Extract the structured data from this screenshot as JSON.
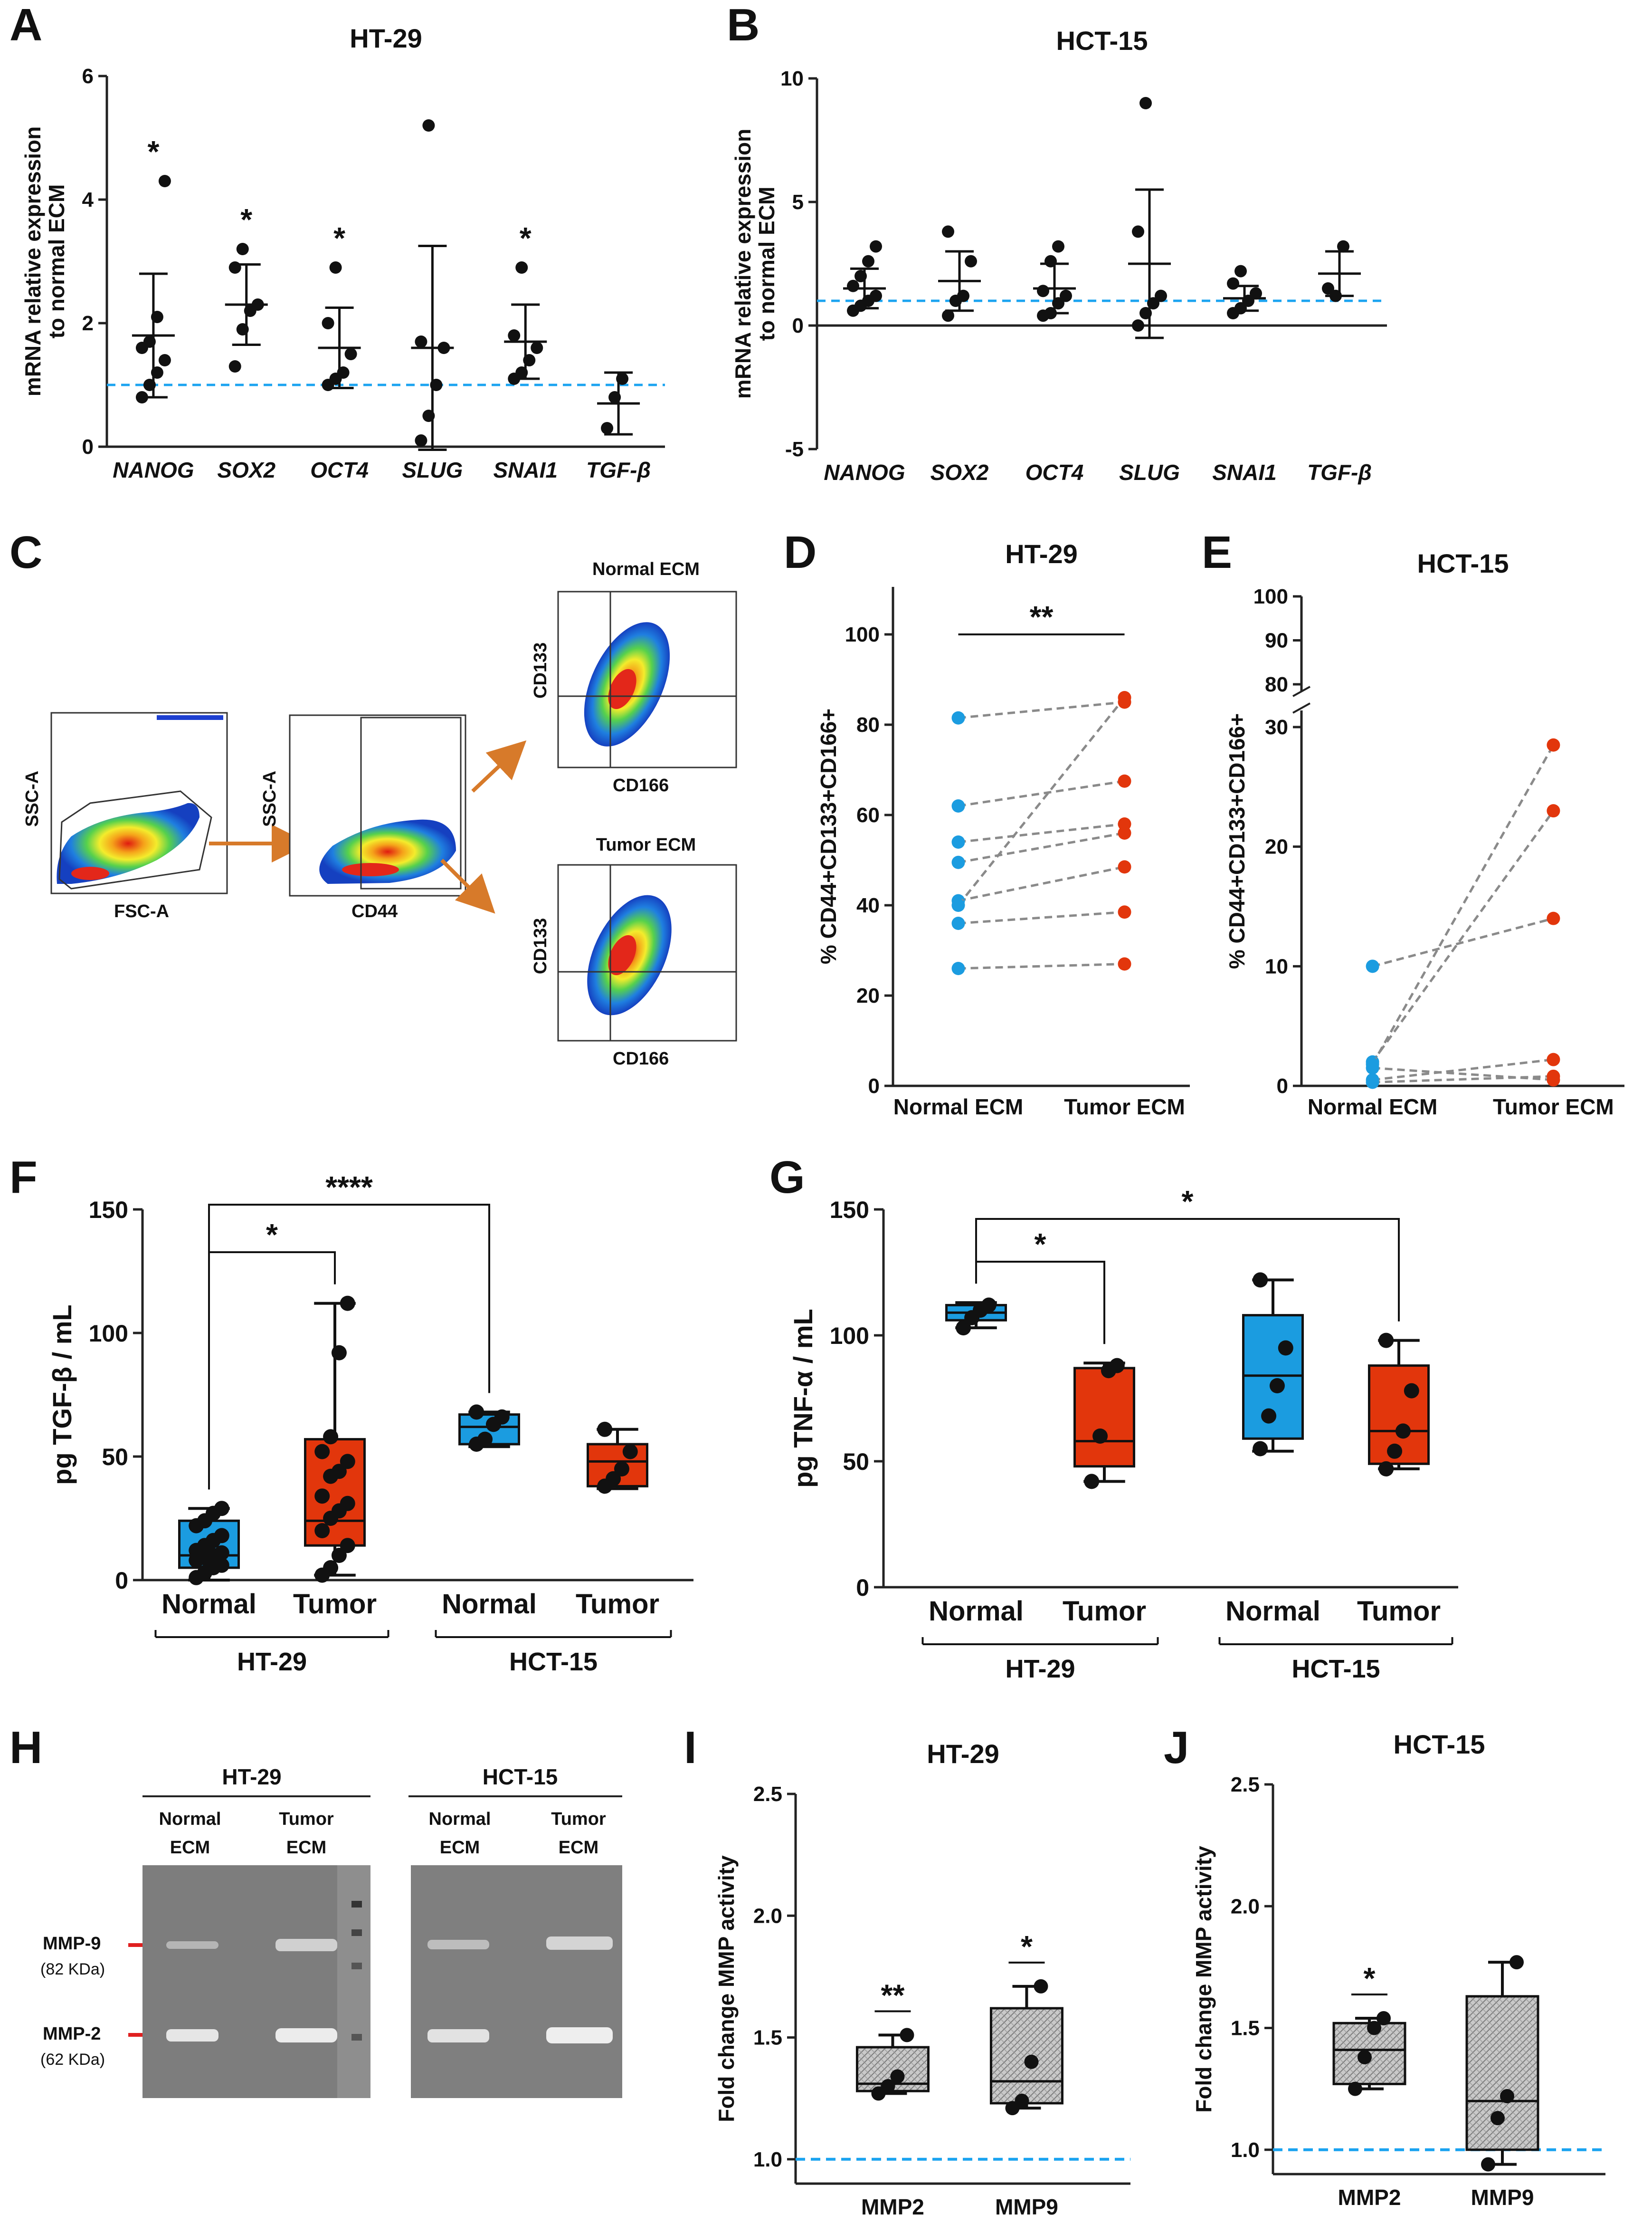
{
  "colors": {
    "normal": "#1b9ce0",
    "tumor": "#e2360c",
    "refline": "#1aa3f0",
    "connector": "#8a8a8a",
    "arrow": "#d77a2a",
    "marker": "#e02020"
  },
  "panels": {
    "A": "A",
    "B": "B",
    "C": "C",
    "D": "D",
    "E": "E",
    "F": "F",
    "G": "G",
    "H": "H",
    "I": "I",
    "J": "J"
  },
  "axis_titles": {
    "mrna": [
      "mRNA relative expression",
      "to normal ECM"
    ],
    "cd": "% CD44+CD133+CD166+",
    "tgf": "pg TGF-β / mL",
    "tnf": "pg TNF-α / mL",
    "mmp": "Fold change MMP activity"
  },
  "chart_data": [
    {
      "id": "A",
      "type": "scatter",
      "title": "HT-29",
      "ylabel": "mRNA relative expression to normal ECM",
      "ylim": [
        0,
        6
      ],
      "yticks": [
        0,
        2,
        4,
        6
      ],
      "categories": [
        "NANOG",
        "SOX2",
        "OCT4",
        "SLUG",
        "SNAI1",
        "TGF-β"
      ],
      "reference_line": 1,
      "points": [
        [
          0.8,
          1.0,
          1.2,
          1.4,
          1.6,
          1.7,
          2.1,
          4.3
        ],
        [
          1.3,
          1.9,
          2.2,
          2.3,
          2.9,
          3.2
        ],
        [
          1.0,
          1.1,
          1.2,
          1.5,
          2.0,
          2.9
        ],
        [
          0.1,
          0.5,
          1.0,
          1.6,
          1.7,
          5.2
        ],
        [
          1.1,
          1.2,
          1.4,
          1.6,
          1.8,
          2.9
        ],
        [
          0.3,
          0.8,
          1.1
        ]
      ],
      "mean": [
        1.8,
        2.3,
        1.6,
        1.6,
        1.7,
        0.7
      ],
      "sd": [
        1.0,
        0.65,
        0.65,
        1.65,
        0.6,
        0.5
      ],
      "significance": [
        "*",
        "*",
        "*",
        "",
        "*",
        ""
      ]
    },
    {
      "id": "B",
      "type": "scatter",
      "title": "HCT-15",
      "ylabel": "mRNA relative expression to normal ECM",
      "ylim": [
        -5,
        10
      ],
      "yticks": [
        -5,
        0,
        5,
        10
      ],
      "categories": [
        "NANOG",
        "SOX2",
        "OCT4",
        "SLUG",
        "SNAI1",
        "TGF-β"
      ],
      "reference_line": 1,
      "points": [
        [
          0.6,
          0.8,
          1.0,
          1.2,
          1.6,
          2.0,
          2.6,
          3.2
        ],
        [
          0.4,
          1.0,
          1.2,
          2.6,
          3.8
        ],
        [
          0.4,
          0.5,
          0.9,
          1.2,
          1.4,
          2.6,
          3.2
        ],
        [
          0.0,
          0.5,
          0.9,
          1.2,
          3.8,
          9.0
        ],
        [
          0.5,
          0.7,
          1.0,
          1.3,
          1.7,
          2.2
        ],
        [
          1.5,
          1.2,
          3.2
        ]
      ],
      "mean": [
        1.5,
        1.8,
        1.5,
        2.5,
        1.1,
        2.1
      ],
      "sd": [
        0.8,
        1.2,
        1.0,
        3.0,
        0.5,
        0.9
      ],
      "significance": [
        "",
        "",
        "",
        "",
        "",
        ""
      ]
    },
    {
      "id": "D",
      "type": "line",
      "title": "HT-29",
      "ylabel": "% CD44+CD133+CD166+",
      "categories": [
        "Normal ECM",
        "Tumor ECM"
      ],
      "ylim": [
        0,
        100
      ],
      "yticks": [
        0,
        20,
        40,
        60,
        80,
        100
      ],
      "pairs": [
        [
          81.5,
          85.0
        ],
        [
          62,
          67.5
        ],
        [
          54,
          58
        ],
        [
          49.5,
          56
        ],
        [
          41,
          48.5
        ],
        [
          40,
          86
        ],
        [
          36,
          38.5
        ],
        [
          26,
          27
        ]
      ],
      "significance": "**"
    },
    {
      "id": "E",
      "type": "line",
      "title": "HCT-15",
      "ylabel": "% CD44+CD133+CD166+",
      "categories": [
        "Normal ECM",
        "Tumor ECM"
      ],
      "ylim": [
        0,
        100
      ],
      "ytick_labels": [
        "0",
        "10",
        "20",
        "30",
        "80",
        "90",
        "100"
      ],
      "pairs": [
        [
          10,
          14
        ],
        [
          2,
          23
        ],
        [
          1.8,
          28.5
        ],
        [
          1.5,
          0.5
        ],
        [
          0.5,
          2.2
        ],
        [
          0.3,
          0.8
        ]
      ]
    },
    {
      "id": "F",
      "type": "box",
      "ylabel": "pg TGF-β / mL",
      "ylim": [
        0,
        150
      ],
      "yticks": [
        0,
        50,
        100,
        150
      ],
      "categories": [
        "Normal",
        "Tumor",
        "Normal",
        "Tumor"
      ],
      "groups": [
        "HT-29",
        "HCT-15"
      ],
      "boxes": [
        {
          "min": 0,
          "q1": 5,
          "median": 10,
          "q3": 24,
          "max": 29
        },
        {
          "min": 2,
          "q1": 14,
          "median": 24,
          "q3": 57,
          "max": 112
        },
        {
          "min": 54,
          "q1": 55,
          "median": 62,
          "q3": 67,
          "max": 68
        },
        {
          "min": 37,
          "q1": 38,
          "median": 48,
          "q3": 55,
          "max": 61
        }
      ],
      "points": [
        [
          1,
          3,
          5,
          6,
          8,
          9,
          10,
          11,
          12,
          14,
          16,
          18,
          22,
          24,
          27,
          29
        ],
        [
          2,
          5,
          10,
          14,
          20,
          25,
          28,
          31,
          34,
          42,
          44,
          48,
          52,
          58,
          92,
          112
        ],
        [
          55,
          57,
          63,
          66,
          68
        ],
        [
          38,
          41,
          45,
          52,
          61
        ]
      ],
      "comparisons": [
        {
          "from": 0,
          "to": 1,
          "label": "*"
        },
        {
          "from": 0,
          "to": 2,
          "label": "****"
        }
      ]
    },
    {
      "id": "G",
      "type": "box",
      "ylabel": "pg TNF-α / mL",
      "ylim": [
        0,
        150
      ],
      "yticks": [
        0,
        50,
        100,
        150
      ],
      "categories": [
        "Normal",
        "Tumor",
        "Normal",
        "Tumor"
      ],
      "groups": [
        "HT-29",
        "HCT-15"
      ],
      "boxes": [
        {
          "min": 103,
          "q1": 106,
          "median": 109,
          "q3": 112,
          "max": 113
        },
        {
          "min": 42,
          "q1": 48,
          "median": 58,
          "q3": 87,
          "max": 89
        },
        {
          "min": 54,
          "q1": 59,
          "median": 84,
          "q3": 108,
          "max": 122
        },
        {
          "min": 47,
          "q1": 49,
          "median": 62,
          "q3": 88,
          "max": 98
        }
      ],
      "points": [
        [
          103,
          107,
          110,
          112
        ],
        [
          42,
          60,
          86,
          88
        ],
        [
          55,
          68,
          80,
          95,
          122
        ],
        [
          47,
          54,
          62,
          78,
          98
        ]
      ],
      "comparisons": [
        {
          "from": 0,
          "to": 1,
          "label": "*"
        },
        {
          "from": 0,
          "to": 3,
          "label": "*"
        }
      ]
    },
    {
      "id": "I",
      "type": "box",
      "title": "HT-29",
      "ylabel": "Fold change MMP activity",
      "ylim": [
        0.9,
        2.5
      ],
      "yticks": [
        1.0,
        1.5,
        2.0,
        2.5
      ],
      "categories": [
        "MMP2",
        "MMP9"
      ],
      "reference_line": 1.0,
      "boxes": [
        {
          "min": 1.27,
          "q1": 1.28,
          "median": 1.31,
          "q3": 1.46,
          "max": 1.51
        },
        {
          "min": 1.21,
          "q1": 1.23,
          "median": 1.32,
          "q3": 1.62,
          "max": 1.71
        }
      ],
      "points": [
        [
          1.27,
          1.3,
          1.34,
          1.51
        ],
        [
          1.21,
          1.24,
          1.4,
          1.71
        ]
      ],
      "significance": [
        "**",
        "*"
      ]
    },
    {
      "id": "J",
      "type": "box",
      "title": "HCT-15",
      "ylabel": "Fold change MMP activity",
      "ylim": [
        0.9,
        2.5
      ],
      "yticks": [
        1.0,
        1.5,
        2.0,
        2.5
      ],
      "categories": [
        "MMP2",
        "MMP9"
      ],
      "reference_line": 1.0,
      "boxes": [
        {
          "min": 1.25,
          "q1": 1.27,
          "median": 1.41,
          "q3": 1.52,
          "max": 1.54
        },
        {
          "min": 0.94,
          "q1": 1.0,
          "median": 1.2,
          "q3": 1.63,
          "max": 1.77
        }
      ],
      "points": [
        [
          1.25,
          1.38,
          1.5,
          1.54
        ],
        [
          0.94,
          1.13,
          1.22,
          1.77
        ]
      ],
      "significance": [
        "*",
        ""
      ]
    }
  ],
  "flow": {
    "x_axis_1": "FSC-A",
    "y_axis_1": "SSC-A",
    "x_axis_2": "CD44",
    "y_axis_2": "SSC-A",
    "x_axis_3": "CD166",
    "y_axis_3": "CD133",
    "label_top": "Normal ECM",
    "label_bottom": "Tumor ECM"
  },
  "gel": {
    "group_1": "HT-29",
    "group_2": "HCT-15",
    "lane_top": [
      "Normal",
      "Tumor",
      "Normal",
      "Tumor"
    ],
    "lane_bottom": [
      "ECM",
      "ECM",
      "ECM",
      "ECM"
    ],
    "band_1": "MMP-9",
    "band_1_kda": "(82 KDa)",
    "band_2": "MMP-2",
    "band_2_kda": "(62 KDa)"
  }
}
